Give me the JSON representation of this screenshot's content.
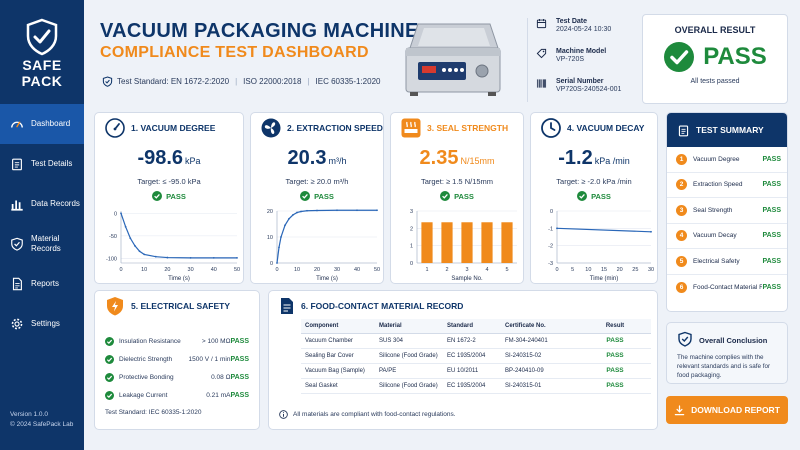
{
  "brand": {
    "logo_line1": "SAFE",
    "logo_line2": "PACK"
  },
  "sidebar": {
    "items": [
      {
        "label": "Dashboard",
        "icon": "gauge-icon"
      },
      {
        "label": "Test Details",
        "icon": "clipboard-icon"
      },
      {
        "label": "Data Records",
        "icon": "bar-chart-icon"
      },
      {
        "label": "Material Records",
        "icon": "shield-check-icon"
      },
      {
        "label": "Reports",
        "icon": "document-icon"
      },
      {
        "label": "Settings",
        "icon": "gear-icon"
      }
    ],
    "version": "Version 1.0.0",
    "copyright": "© 2024 SafePack Lab"
  },
  "header": {
    "title": "VACUUM PACKAGING MACHINE",
    "subtitle": "COMPLIANCE TEST DASHBOARD",
    "standard_label": "Test Standard:",
    "standards": [
      "EN 1672-2:2020",
      "ISO 22000:2018",
      "IEC 60335-1:2020"
    ]
  },
  "meta": {
    "test_date_label": "Test Date",
    "test_date": "2024-05-24 10:30",
    "model_label": "Machine Model",
    "model": "VP-720S",
    "serial_label": "Serial Number",
    "serial": "VP720S-240524-001"
  },
  "overall": {
    "title": "OVERALL RESULT",
    "result": "PASS",
    "sub": "All tests passed"
  },
  "cards": {
    "vacuum_degree": {
      "title": "1. VACUUM DEGREE",
      "value": "-98.6",
      "unit": "kPa",
      "target": "Target:  ≤  -95.0 kPa",
      "result": "PASS"
    },
    "extraction_speed": {
      "title": "2. EXTRACTION SPEED",
      "value": "20.3",
      "unit": "m³/h",
      "target": "Target:  ≥  20.0 m³/h",
      "result": "PASS"
    },
    "seal_strength": {
      "title": "3. SEAL STRENGTH",
      "value": "2.35",
      "unit": "N/15mm",
      "target": "Target:  ≥  1.5 N/15mm",
      "result": "PASS"
    },
    "vacuum_decay": {
      "title": "4. VACUUM DECAY",
      "value": "-1.2",
      "unit": "kPa /min",
      "target": "Target:  ≥  -2.0 kPa /min",
      "result": "PASS"
    }
  },
  "chart_data": [
    {
      "type": "line",
      "xlabel": "Time (s)",
      "ylabel": "",
      "xlim": [
        0,
        50
      ],
      "ylim": [
        -110,
        5
      ],
      "xticks": [
        "0",
        "10",
        "20",
        "30",
        "40",
        "50"
      ],
      "yticks": [
        "0",
        "-50",
        "-100"
      ],
      "x": [
        0,
        2,
        4,
        6,
        8,
        10,
        15,
        20,
        30,
        40,
        50
      ],
      "y": [
        0,
        -30,
        -55,
        -72,
        -84,
        -91,
        -96,
        -98,
        -98.6,
        -98.6,
        -98.6
      ]
    },
    {
      "type": "line",
      "xlabel": "Time (s)",
      "ylabel": "",
      "xlim": [
        0,
        50
      ],
      "ylim": [
        0,
        20
      ],
      "xticks": [
        "0",
        "10",
        "20",
        "30",
        "40",
        "50"
      ],
      "yticks": [
        "0",
        "10",
        "20"
      ],
      "x": [
        0,
        1,
        2,
        4,
        6,
        8,
        10,
        12,
        15,
        20,
        30,
        40,
        50
      ],
      "y": [
        0,
        6,
        10,
        14.5,
        17,
        18.5,
        19.4,
        19.8,
        20.1,
        20.2,
        20.3,
        20.3,
        20.3
      ]
    },
    {
      "type": "bar",
      "xlabel": "Sample No.",
      "ylabel": "",
      "ylim": [
        0,
        3
      ],
      "categories": [
        "1",
        "2",
        "3",
        "4",
        "5"
      ],
      "yticks": [
        "0",
        "1",
        "2",
        "3"
      ],
      "values": [
        2.35,
        2.35,
        2.35,
        2.35,
        2.35
      ]
    },
    {
      "type": "line",
      "xlabel": "Time (min)",
      "ylabel": "",
      "xlim": [
        0,
        30
      ],
      "ylim": [
        -3,
        0
      ],
      "xticks": [
        "0",
        "5",
        "10",
        "15",
        "20",
        "25",
        "30"
      ],
      "yticks": [
        "0",
        "-1",
        "-2",
        "-3"
      ],
      "x": [
        0,
        30
      ],
      "y": [
        -1.0,
        -1.2
      ]
    }
  ],
  "summary": {
    "title": "TEST SUMMARY",
    "rows": [
      {
        "n": "1",
        "name": "Vacuum Degree",
        "result": "PASS"
      },
      {
        "n": "2",
        "name": "Extraction Speed",
        "result": "PASS"
      },
      {
        "n": "3",
        "name": "Seal Strength",
        "result": "PASS"
      },
      {
        "n": "4",
        "name": "Vacuum Decay",
        "result": "PASS"
      },
      {
        "n": "5",
        "name": "Electrical Safety",
        "result": "PASS"
      },
      {
        "n": "6",
        "name": "Food-Contact Material Record",
        "result": "PASS"
      }
    ]
  },
  "conclusion": {
    "title": "Overall Conclusion",
    "text": "The machine complies with the relevant standards and is safe for food packaging."
  },
  "download_label": "DOWNLOAD REPORT",
  "electrical": {
    "title": "5. ELECTRICAL SAFETY",
    "rows": [
      {
        "name": "Insulation Resistance",
        "value": "> 100 MΩ",
        "result": "PASS"
      },
      {
        "name": "Dielectric Strength",
        "value": "1500 V / 1 min",
        "result": "PASS"
      },
      {
        "name": "Protective Bonding",
        "value": "0.08 Ω",
        "result": "PASS"
      },
      {
        "name": "Leakage Current",
        "value": "0.21 mA",
        "result": "PASS"
      }
    ],
    "standard": "Test Standard:  IEC 60335-1:2020"
  },
  "food_contact": {
    "title": "6. FOOD-CONTACT MATERIAL RECORD",
    "columns": [
      "Component",
      "Material",
      "Standard",
      "Certificate No.",
      "Result"
    ],
    "rows": [
      [
        "Vacuum Chamber",
        "SUS 304",
        "EN 1672-2",
        "FM-304-240401",
        "PASS"
      ],
      [
        "Sealing Bar Cover",
        "Silicone (Food Grade)",
        "EC 1935/2004",
        "SI-240315-02",
        "PASS"
      ],
      [
        "Vacuum Bag (Sample)",
        "PA/PE",
        "EU 10/2011",
        "BP-240410-09",
        "PASS"
      ],
      [
        "Seal Gasket",
        "Silicone (Food Grade)",
        "EC 1935/2004",
        "SI-240315-01",
        "PASS"
      ]
    ],
    "note": "All materials are compliant with food-contact regulations."
  },
  "colors": {
    "navy": "#0e3569",
    "accent": "#f08a1c",
    "pass": "#1e8a3c",
    "active_nav": "#1a57a8"
  }
}
